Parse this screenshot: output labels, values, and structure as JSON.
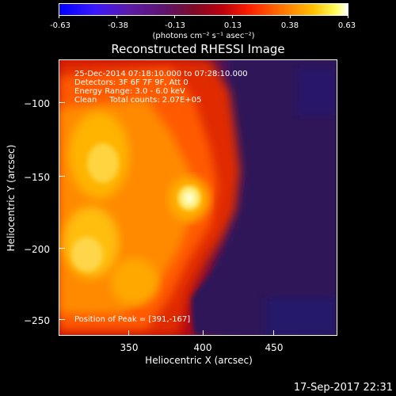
{
  "colorbar": {
    "tick_labels": [
      "-0.63",
      "-0.38",
      "-0.13",
      "0.13",
      "0.38",
      "0.63"
    ],
    "units": "(photons cm⁻² s⁻¹ asec⁻²)"
  },
  "title": "Reconstructed RHESSI Image",
  "info": {
    "line1": "25-Dec-2014 07:18:10.000 to 07:28:10.000",
    "line2": "Detectors: 3F 6F 7F 9F, Att 0",
    "line3": "Energy Range: 3.0 - 6.0 keV",
    "line4": "Clean     Total counts: 2.07E+05"
  },
  "peak_label": "Position of Peak = [391,-167]",
  "axes": {
    "x_title": "Heliocentric X (arcsec)",
    "y_title": "Heliocentric Y (arcsec)",
    "x_ticks": [
      "350",
      "400",
      "450"
    ],
    "y_ticks": [
      "−100",
      "−150",
      "−200",
      "−250"
    ]
  },
  "timestamp": "17-Sep-2017 22:31",
  "colors": {
    "background": "#000000",
    "foreground": "#ffffff"
  }
}
